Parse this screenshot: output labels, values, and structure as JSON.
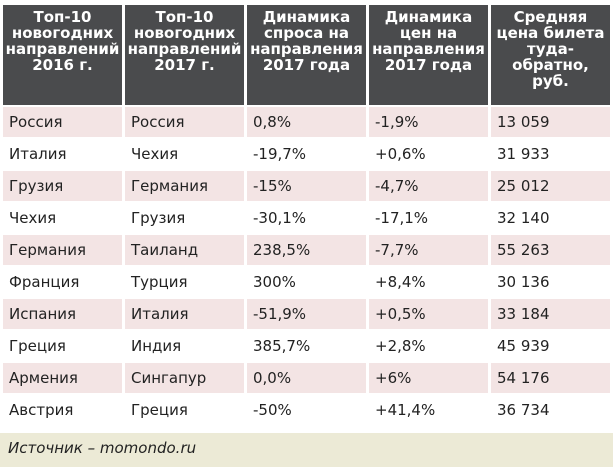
{
  "headers": [
    "Топ-10 новогодних направлений 2016 г.",
    "Топ-10 новогодних направлений 2017 г.",
    "Динамика спроса на направления 2017 года",
    "Динамика цен на направления 2017 года",
    "Средняя цена билета туда-обратно, руб."
  ],
  "rows": [
    [
      "Россия",
      "Россия",
      "0,8%",
      "-1,9%",
      "13 059"
    ],
    [
      "Италия",
      "Чехия",
      "-19,7%",
      "+0,6%",
      "31 933"
    ],
    [
      "Грузия",
      "Германия",
      "-15%",
      "-4,7%",
      "25 012"
    ],
    [
      "Чехия",
      "Грузия",
      "-30,1%",
      "-17,1%",
      "32 140"
    ],
    [
      "Германия",
      "Таиланд",
      "238,5%",
      "-7,7%",
      "55 263"
    ],
    [
      "Франция",
      "Турция",
      "300%",
      "+8,4%",
      "30 136"
    ],
    [
      "Испания",
      "Италия",
      "-51,9%",
      "+0,5%",
      "33 184"
    ],
    [
      "Греция",
      "Индия",
      "385,7%",
      "+2,8%",
      "45 939"
    ],
    [
      "Армения",
      "Сингапур",
      "0,0%",
      "+6%",
      "54 176"
    ],
    [
      "Австрия",
      "Греция",
      "-50%",
      "+41,4%",
      "36 734"
    ]
  ],
  "source": "Источник – momondo.ru",
  "colors": {
    "header": "#4a4b4d",
    "row_alt": "#f3e4e4",
    "footer": "#ecead6"
  }
}
